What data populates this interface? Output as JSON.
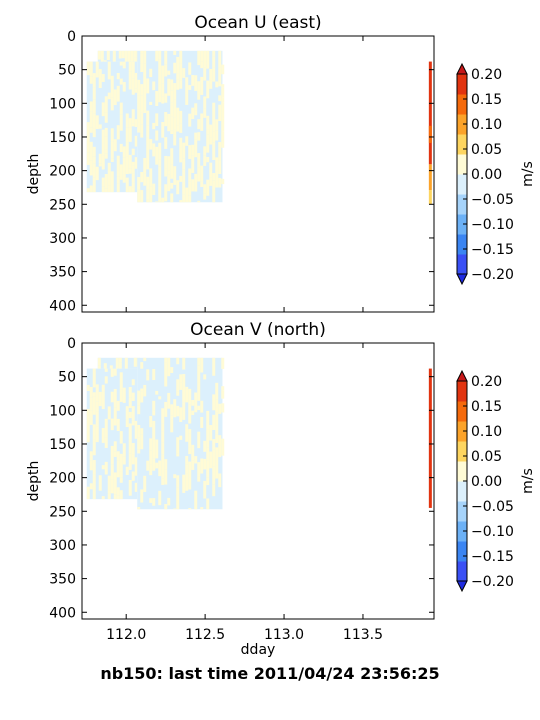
{
  "footer": "nb150: last time 2011/04/24 23:56:25",
  "chart_data": [
    {
      "type": "heatmap",
      "title": "Ocean U (east)",
      "xlabel": "",
      "ylabel": "depth",
      "xlim": [
        111.72,
        113.95
      ],
      "ylim": [
        410,
        0
      ],
      "yticks": [
        0,
        50,
        100,
        150,
        200,
        250,
        300,
        350,
        400
      ],
      "xticks": [
        112.0,
        112.5,
        113.0,
        113.5
      ],
      "show_xticklabels": false,
      "grid": false,
      "data_regions": [
        {
          "x": [
            111.75,
            112.07
          ],
          "y": [
            38,
            232
          ]
        },
        {
          "x": [
            111.82,
            112.07
          ],
          "y": [
            22,
            38
          ]
        },
        {
          "x": [
            112.07,
            112.61
          ],
          "y": [
            22,
            247
          ]
        }
      ],
      "latest_profile": {
        "x": 113.93,
        "y": [
          38,
          250
        ],
        "values_range": [
          0.1,
          0.2
        ]
      },
      "colorbar": {
        "label": "m/s",
        "ticks": [
          -0.2,
          -0.15,
          -0.1,
          -0.05,
          0.0,
          0.05,
          0.1,
          0.15,
          0.2
        ],
        "tick_labels": [
          "−0.20",
          "−0.15",
          "−0.10",
          "−0.05",
          "0.00",
          "0.05",
          "0.10",
          "0.15",
          "0.20"
        ],
        "colors": [
          "#3a50f5",
          "#3b85f2",
          "#6cb1f6",
          "#a6d3fa",
          "#dcf0fc",
          "#fffbd6",
          "#fdd560",
          "#fba32a",
          "#f56a0c",
          "#e13410"
        ],
        "extend": "both"
      }
    },
    {
      "type": "heatmap",
      "title": "Ocean V (north)",
      "xlabel": "dday",
      "ylabel": "depth",
      "xlim": [
        111.72,
        113.95
      ],
      "ylim": [
        410,
        0
      ],
      "yticks": [
        0,
        50,
        100,
        150,
        200,
        250,
        300,
        350,
        400
      ],
      "xticks": [
        112.0,
        112.5,
        113.0,
        113.5
      ],
      "xtick_labels": [
        "112.0",
        "112.5",
        "113.0",
        "113.5"
      ],
      "show_xticklabels": true,
      "grid": false,
      "data_regions": [
        {
          "x": [
            111.75,
            112.07
          ],
          "y": [
            38,
            232
          ]
        },
        {
          "x": [
            111.82,
            112.07
          ],
          "y": [
            22,
            38
          ]
        },
        {
          "x": [
            112.07,
            112.61
          ],
          "y": [
            22,
            247
          ]
        }
      ],
      "latest_profile": {
        "x": 113.93,
        "y": [
          38,
          245
        ],
        "values_range": [
          0.2,
          0.2
        ]
      },
      "colorbar": {
        "label": "m/s",
        "ticks": [
          -0.2,
          -0.15,
          -0.1,
          -0.05,
          0.0,
          0.05,
          0.1,
          0.15,
          0.2
        ],
        "tick_labels": [
          "−0.20",
          "−0.15",
          "−0.10",
          "−0.05",
          "0.00",
          "0.05",
          "0.10",
          "0.15",
          "0.20"
        ],
        "colors": [
          "#3a50f5",
          "#3b85f2",
          "#6cb1f6",
          "#a6d3fa",
          "#dcf0fc",
          "#fffbd6",
          "#fdd560",
          "#fba32a",
          "#f56a0c",
          "#e13410"
        ],
        "extend": "both"
      }
    }
  ]
}
